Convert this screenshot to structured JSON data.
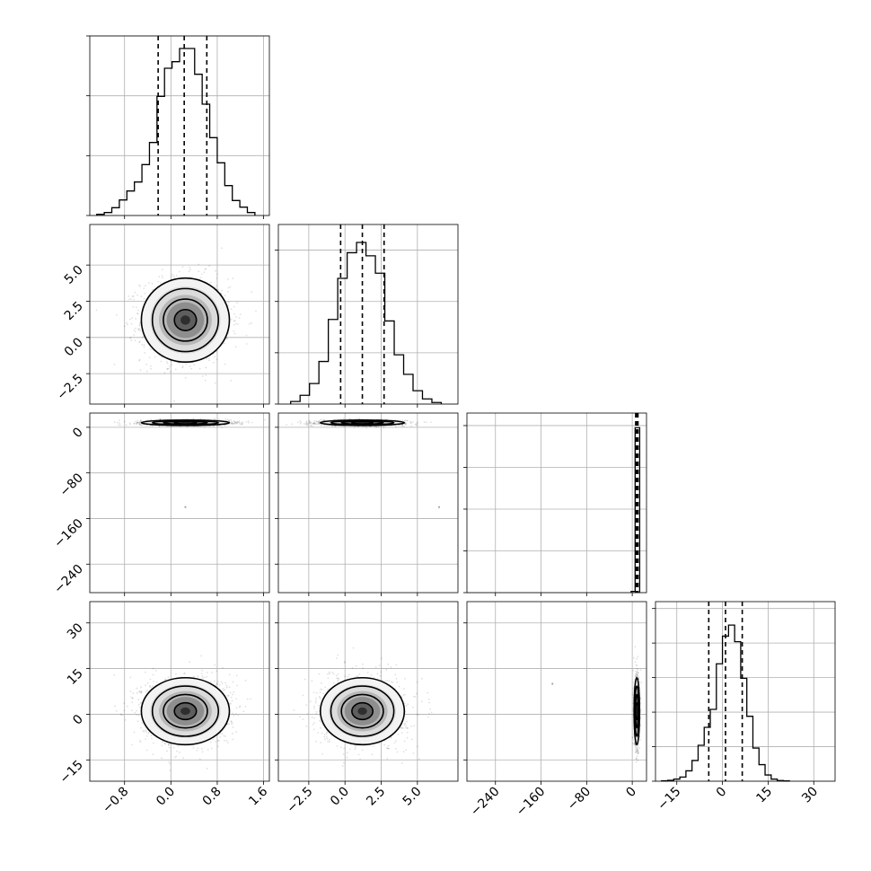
{
  "chart_data": {
    "type": "corner",
    "grid": true,
    "parameters": [
      {
        "range": [
          -1.4,
          1.7
        ],
        "ticks": [
          -0.8,
          0.0,
          0.8,
          1.6
        ],
        "tick_labels": [
          "−0.8",
          "0.0",
          "0.8",
          "1.6"
        ],
        "quantiles": [
          -0.22,
          0.23,
          0.62
        ],
        "hist": {
          "edges": [
            -1.28,
            -1.15,
            -1.02,
            -0.89,
            -0.76,
            -0.63,
            -0.5,
            -0.37,
            -0.24,
            -0.11,
            0.02,
            0.15,
            0.28,
            0.41,
            0.54,
            0.67,
            0.8,
            0.93,
            1.06,
            1.19,
            1.32,
            1.45
          ],
          "counts": [
            2,
            5,
            13,
            26,
            41,
            56,
            85,
            122,
            199,
            246,
            257,
            279,
            279,
            236,
            186,
            130,
            88,
            50,
            25,
            14,
            5
          ]
        },
        "hist_ylim": [
          0,
          300
        ],
        "hist_yticks": [
          0,
          100,
          200,
          300
        ]
      },
      {
        "range": [
          -4.6,
          7.8
        ],
        "ticks": [
          -2.5,
          0.0,
          2.5,
          5.0
        ],
        "tick_labels": [
          "−2.5",
          "0.0",
          "2.5",
          "5.0"
        ],
        "quantiles": [
          -0.3,
          1.2,
          2.7
        ],
        "hist": {
          "edges": [
            -3.75,
            -3.1,
            -2.45,
            -1.8,
            -1.15,
            -0.5,
            0.15,
            0.8,
            1.45,
            2.1,
            2.75,
            3.4,
            4.05,
            4.7,
            5.35,
            6.0,
            6.65
          ],
          "counts": [
            5,
            17,
            40,
            83,
            165,
            245,
            295,
            315,
            289,
            255,
            162,
            96,
            58,
            26,
            10,
            3
          ]
        },
        "hist_ylim": [
          0,
          350
        ],
        "hist_yticks": [
          0,
          100,
          200,
          300
        ]
      },
      {
        "range": [
          -290,
          25
        ],
        "ticks": [
          -240,
          -160,
          -80,
          0
        ],
        "tick_labels": [
          "−240",
          "−160",
          "−80",
          "0"
        ],
        "quantiles": [
          6,
          8,
          10
        ],
        "hist": {
          "edges": [
            -2,
            5,
            13
          ],
          "counts": [
            30,
            3950
          ]
        },
        "hist_ylim": [
          0,
          4300
        ],
        "hist_yticks": [
          0,
          1000,
          2000,
          3000,
          4000
        ]
      },
      {
        "range": [
          -22,
          37
        ],
        "ticks": [
          -15,
          0,
          15,
          30
        ],
        "tick_labels": [
          "−15",
          "0",
          "15",
          "30"
        ],
        "quantiles": [
          -4.5,
          1,
          6.5
        ],
        "hist": {
          "edges": [
            -20,
            -18,
            -16,
            -14,
            -12,
            -10,
            -8,
            -6,
            -4,
            -2,
            0,
            2,
            4,
            6,
            8,
            10,
            12,
            14,
            16,
            18,
            20,
            22
          ],
          "counts": [
            3,
            6,
            15,
            30,
            75,
            150,
            260,
            390,
            520,
            850,
            1050,
            1130,
            1010,
            745,
            470,
            240,
            120,
            45,
            15,
            5,
            2
          ]
        },
        "hist_ylim": [
          0,
          1300
        ],
        "hist_yticks": [
          0,
          250,
          500,
          750,
          1000,
          1250
        ]
      }
    ],
    "pairs": [
      {
        "x": 0,
        "y": 1,
        "center": [
          0.25,
          1.2
        ],
        "sigma": [
          0.38,
          1.45
        ]
      },
      {
        "x": 0,
        "y": 2,
        "center": [
          0.25,
          8
        ],
        "sigma": [
          0.38,
          2.4
        ]
      },
      {
        "x": 1,
        "y": 2,
        "center": [
          1.2,
          8
        ],
        "sigma": [
          1.45,
          2.4
        ]
      },
      {
        "x": 0,
        "y": 3,
        "center": [
          0.25,
          1
        ],
        "sigma": [
          0.38,
          5.5
        ]
      },
      {
        "x": 1,
        "y": 3,
        "center": [
          1.2,
          1
        ],
        "sigma": [
          1.45,
          5.5
        ]
      },
      {
        "x": 2,
        "y": 3,
        "center": [
          8,
          1
        ],
        "sigma": [
          2.4,
          5.5
        ]
      }
    ],
    "contour_levels": [
      0.5,
      1.0,
      1.5,
      2.0
    ],
    "outlier_points": [
      {
        "pair": [
          0,
          2
        ],
        "x": 0.25,
        "y": -140
      },
      {
        "pair": [
          1,
          2
        ],
        "x": 6.5,
        "y": -140
      },
      {
        "pair": [
          2,
          3
        ],
        "x": -140,
        "y": 10
      }
    ]
  }
}
